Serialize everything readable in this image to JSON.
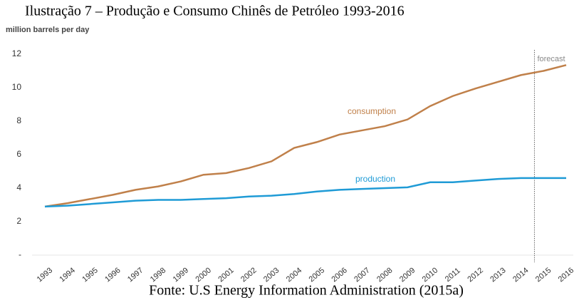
{
  "chart_data": {
    "type": "line",
    "title": "Ilustração 7 – Produção e Consumo Chinês de Petróleo 1993-2016",
    "y_label": "million barrels per day",
    "source": "Fonte: U.S Energy Information Administration (2015a)",
    "forecast_label": "forecast",
    "categories": [
      "1993",
      "1994",
      "1995",
      "1996",
      "1997",
      "1998",
      "1999",
      "2000",
      "2001",
      "2002",
      "2003",
      "2004",
      "2005",
      "2006",
      "2007",
      "2008",
      "2009",
      "2010",
      "2011",
      "2012",
      "2013",
      "2014",
      "2015",
      "2016"
    ],
    "series": [
      {
        "name": "consumption",
        "color": "#c0804a",
        "values": [
          2.9,
          3.1,
          3.35,
          3.6,
          3.9,
          4.1,
          4.4,
          4.8,
          4.9,
          5.2,
          5.6,
          6.4,
          6.75,
          7.2,
          7.45,
          7.7,
          8.1,
          8.9,
          9.5,
          9.95,
          10.35,
          10.75,
          11.0,
          11.35
        ]
      },
      {
        "name": "production",
        "color": "#1f9bd6",
        "values": [
          2.9,
          2.95,
          3.05,
          3.15,
          3.25,
          3.3,
          3.3,
          3.35,
          3.4,
          3.5,
          3.55,
          3.65,
          3.8,
          3.9,
          3.95,
          4.0,
          4.05,
          4.35,
          4.35,
          4.45,
          4.55,
          4.6,
          4.6,
          4.6
        ]
      }
    ],
    "ylim": [
      0,
      12
    ],
    "yticks": [
      {
        "value": 0,
        "label": "-"
      },
      2,
      4,
      6,
      8,
      10,
      12
    ],
    "grid": false
  }
}
